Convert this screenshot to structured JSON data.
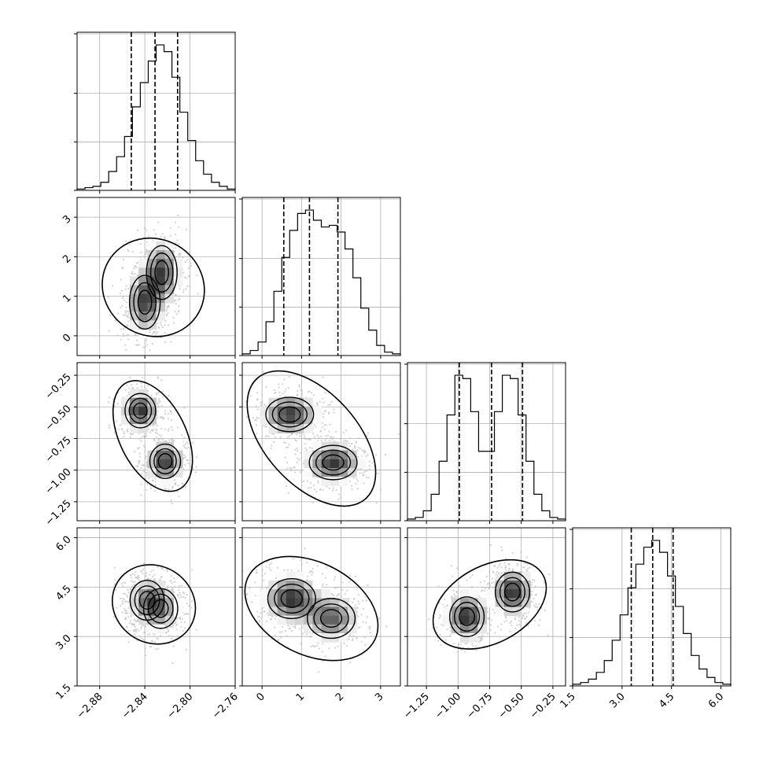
{
  "chart_data": {
    "type": "corner",
    "title": "",
    "params": [
      {
        "range": [
          -2.9,
          -2.76
        ],
        "ticks": [
          -2.88,
          -2.84,
          -2.8,
          -2.76
        ],
        "tick_labels": [
          "−2.88",
          "−2.84",
          "−2.80",
          "−2.76"
        ],
        "quantiles": [
          -2.852,
          -2.831,
          -2.811
        ],
        "hist_values": [
          1,
          2,
          3,
          6,
          14,
          25,
          40,
          62,
          80,
          96,
          108,
          103,
          84,
          58,
          37,
          22,
          12,
          6,
          3,
          1
        ]
      },
      {
        "range": [
          -0.5,
          3.5
        ],
        "ticks": [
          0,
          1,
          2,
          3
        ],
        "tick_labels": [
          "0",
          "1",
          "2",
          "3"
        ],
        "quantiles": [
          0.55,
          1.2,
          1.92
        ],
        "hist_values": [
          1,
          3,
          8,
          20,
          38,
          58,
          74,
          84,
          86,
          80,
          76,
          77,
          73,
          63,
          46,
          28,
          15,
          6,
          2,
          1
        ]
      },
      {
        "range": [
          -1.4,
          -0.15
        ],
        "ticks": [
          -1.25,
          -1.0,
          -0.75,
          -0.5,
          -0.25
        ],
        "tick_labels": [
          "−1.25",
          "−1.00",
          "−0.75",
          "−0.50",
          "−0.25"
        ],
        "quantiles": [
          -0.99,
          -0.735,
          -0.49
        ],
        "hist_values": [
          1,
          2,
          6,
          16,
          36,
          64,
          88,
          86,
          66,
          42,
          42,
          66,
          88,
          86,
          64,
          36,
          16,
          6,
          2,
          1
        ]
      },
      {
        "range": [
          1.5,
          6.3
        ],
        "ticks": [
          1.5,
          3.0,
          4.5,
          6.0
        ],
        "tick_labels": [
          "1.5",
          "3.0",
          "4.5",
          "6.0"
        ],
        "quantiles": [
          3.28,
          3.93,
          4.55
        ],
        "hist_values": [
          1,
          2,
          4,
          8,
          15,
          27,
          42,
          58,
          72,
          82,
          86,
          79,
          65,
          47,
          31,
          18,
          10,
          5,
          2,
          1
        ]
      }
    ],
    "pairs": [
      {
        "row": 1,
        "col": 0,
        "clusters": [
          {
            "x": -2.84,
            "y": 0.85,
            "sx": 0.009,
            "sy": 0.45,
            "w": 0.5
          },
          {
            "x": -2.825,
            "y": 1.6,
            "sx": 0.009,
            "sy": 0.45,
            "w": 0.5
          }
        ]
      },
      {
        "row": 2,
        "col": 0,
        "clusters": [
          {
            "x": -2.844,
            "y": -0.53,
            "sx": 0.009,
            "sy": 0.09,
            "w": 0.5
          },
          {
            "x": -2.822,
            "y": -0.93,
            "sx": 0.009,
            "sy": 0.09,
            "w": 0.5
          }
        ]
      },
      {
        "row": 2,
        "col": 1,
        "clusters": [
          {
            "x": 0.7,
            "y": -0.56,
            "sx": 0.4,
            "sy": 0.09,
            "w": 0.5
          },
          {
            "x": 1.8,
            "y": -0.94,
            "sx": 0.4,
            "sy": 0.09,
            "w": 0.5
          }
        ]
      },
      {
        "row": 3,
        "col": 0,
        "clusters": [
          {
            "x": -2.838,
            "y": 4.1,
            "sx": 0.01,
            "sy": 0.4,
            "w": 0.5
          },
          {
            "x": -2.826,
            "y": 3.85,
            "sx": 0.01,
            "sy": 0.4,
            "w": 0.5
          }
        ]
      },
      {
        "row": 3,
        "col": 1,
        "clusters": [
          {
            "x": 0.75,
            "y": 4.15,
            "sx": 0.4,
            "sy": 0.4,
            "w": 0.55
          },
          {
            "x": 1.75,
            "y": 3.55,
            "sx": 0.4,
            "sy": 0.4,
            "w": 0.45
          }
        ]
      },
      {
        "row": 3,
        "col": 2,
        "clusters": [
          {
            "x": -0.93,
            "y": 3.6,
            "sx": 0.09,
            "sy": 0.4,
            "w": 0.5
          },
          {
            "x": -0.57,
            "y": 4.35,
            "sx": 0.09,
            "sy": 0.4,
            "w": 0.5
          }
        ]
      }
    ],
    "diag_y_tick_fractions": [
      0.0,
      0.333,
      0.667,
      1.0
    ],
    "grid": true,
    "colors": {
      "line": "#000000",
      "grid": "#b0b0b0",
      "scatter": "#bdbdbd"
    }
  }
}
